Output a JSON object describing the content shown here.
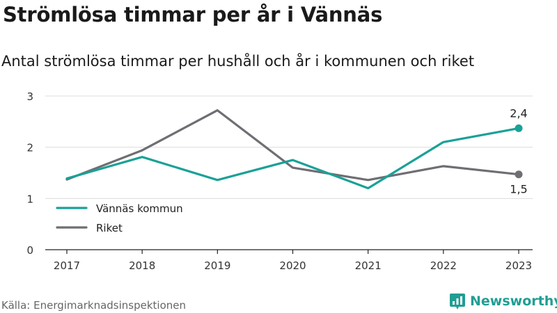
{
  "title": "Strömlösa timmar per år i Vännäs",
  "subtitle": "Antal strömlösa timmar per hushåll och år i kommunen och riket",
  "source": "Källa: Energimarknadsinspektionen",
  "brand": {
    "name": "Newsworthy",
    "icon": "newsworthy-logo-icon",
    "color": "#1f9e94"
  },
  "chart_data": {
    "type": "line",
    "x": [
      "2017",
      "2018",
      "2019",
      "2020",
      "2021",
      "2022",
      "2023"
    ],
    "ylim": [
      0,
      3
    ],
    "yticks": [
      "0",
      "1",
      "2",
      "3"
    ],
    "grid": true,
    "legend": "bottom-left",
    "series": [
      {
        "name": "Vännäs kommun",
        "color": "#1aa197",
        "values": [
          1.39,
          1.81,
          1.36,
          1.75,
          1.2,
          2.1,
          2.37
        ]
      },
      {
        "name": "Riket",
        "color": "#6e6e73",
        "values": [
          1.37,
          1.94,
          2.72,
          1.6,
          1.36,
          1.63,
          1.47
        ]
      }
    ],
    "end_labels": [
      "2,4",
      "1,5"
    ]
  }
}
